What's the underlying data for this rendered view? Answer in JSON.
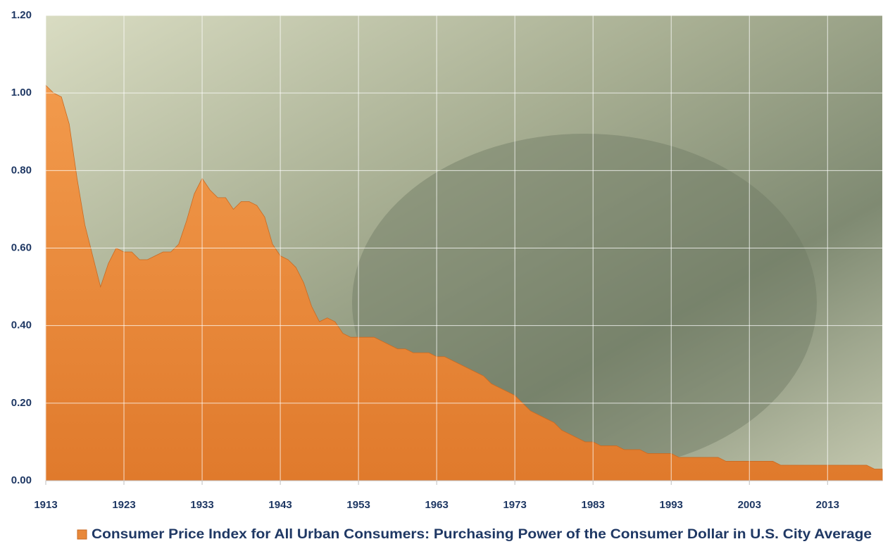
{
  "chart_data": {
    "type": "area",
    "x": [
      1913,
      1914,
      1915,
      1916,
      1917,
      1918,
      1919,
      1920,
      1921,
      1922,
      1923,
      1924,
      1925,
      1926,
      1927,
      1928,
      1929,
      1930,
      1931,
      1932,
      1933,
      1934,
      1935,
      1936,
      1937,
      1938,
      1939,
      1940,
      1941,
      1942,
      1943,
      1944,
      1945,
      1946,
      1947,
      1948,
      1949,
      1950,
      1951,
      1952,
      1953,
      1954,
      1955,
      1956,
      1957,
      1958,
      1959,
      1960,
      1961,
      1962,
      1963,
      1964,
      1965,
      1966,
      1967,
      1968,
      1969,
      1970,
      1971,
      1972,
      1973,
      1974,
      1975,
      1976,
      1977,
      1978,
      1979,
      1980,
      1981,
      1982,
      1983,
      1984,
      1985,
      1986,
      1987,
      1988,
      1989,
      1990,
      1991,
      1992,
      1993,
      1994,
      1995,
      1996,
      1997,
      1998,
      1999,
      2000,
      2001,
      2002,
      2003,
      2004,
      2005,
      2006,
      2007,
      2008,
      2009,
      2010,
      2011,
      2012,
      2013,
      2014,
      2015,
      2016,
      2017,
      2018,
      2019,
      2020
    ],
    "series": [
      {
        "name": "Consumer Price Index for All Urban Consumers: Purchasing Power of the Consumer Dollar in U.S. City Average",
        "color": "#e8883a",
        "values": [
          1.02,
          1.0,
          0.99,
          0.92,
          0.78,
          0.66,
          0.58,
          0.5,
          0.56,
          0.6,
          0.59,
          0.59,
          0.57,
          0.57,
          0.58,
          0.59,
          0.59,
          0.61,
          0.67,
          0.74,
          0.78,
          0.75,
          0.73,
          0.73,
          0.7,
          0.72,
          0.72,
          0.71,
          0.68,
          0.61,
          0.58,
          0.57,
          0.55,
          0.51,
          0.45,
          0.41,
          0.42,
          0.41,
          0.38,
          0.37,
          0.37,
          0.37,
          0.37,
          0.36,
          0.35,
          0.34,
          0.34,
          0.33,
          0.33,
          0.33,
          0.32,
          0.32,
          0.31,
          0.3,
          0.29,
          0.28,
          0.27,
          0.25,
          0.24,
          0.23,
          0.22,
          0.2,
          0.18,
          0.17,
          0.16,
          0.15,
          0.13,
          0.12,
          0.11,
          0.1,
          0.1,
          0.09,
          0.09,
          0.09,
          0.08,
          0.08,
          0.08,
          0.07,
          0.07,
          0.07,
          0.07,
          0.06,
          0.06,
          0.06,
          0.06,
          0.06,
          0.06,
          0.05,
          0.05,
          0.05,
          0.05,
          0.05,
          0.05,
          0.05,
          0.04,
          0.04,
          0.04,
          0.04,
          0.04,
          0.04,
          0.04,
          0.04,
          0.04,
          0.04,
          0.04,
          0.04,
          0.03,
          0.03
        ]
      }
    ],
    "xlim": [
      1913,
      2020
    ],
    "xticks": [
      1913,
      1923,
      1933,
      1943,
      1953,
      1963,
      1973,
      1983,
      1993,
      2003,
      2013
    ],
    "ylim": [
      0,
      1.2
    ],
    "yticks": [
      {
        "value": 0,
        "label": "0.00"
      },
      {
        "value": 0.2,
        "label": "0.20"
      },
      {
        "value": 0.4,
        "label": "0.40"
      },
      {
        "value": 0.6,
        "label": "0.60"
      },
      {
        "value": 0.8,
        "label": "0.80"
      },
      {
        "value": 1.0,
        "label": "1.00"
      },
      {
        "value": 1.2,
        "label": "1.20"
      }
    ],
    "grid": true,
    "legend": "bottom"
  }
}
